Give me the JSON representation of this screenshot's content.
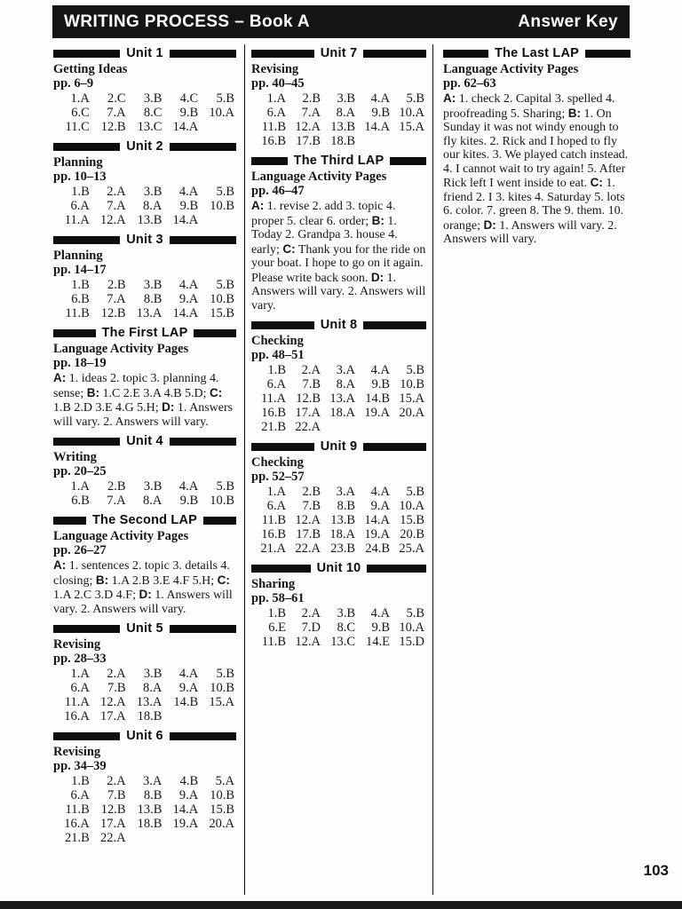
{
  "header": {
    "title": "WRITING PROCESS – Book A",
    "right_label": "Answer Key"
  },
  "page_number": "103",
  "colors": {
    "bar": "#171514",
    "heading_bar": "#0d0d0d",
    "text": "#161616"
  },
  "columns": [
    {
      "sections": [
        {
          "heading": "Unit 1",
          "subtitle": "Getting Ideas",
          "pages": "pp. 6–9",
          "answers": [
            "1.A",
            "2.C",
            "3.B",
            "4.C",
            "5.B",
            "6.C",
            "7.A",
            "8.C",
            "9.B",
            "10.A",
            "11.C",
            "12.B",
            "13.C",
            "14.A"
          ]
        },
        {
          "heading": "Unit 2",
          "subtitle": "Planning",
          "pages": "pp. 10–13",
          "answers": [
            "1.B",
            "2.A",
            "3.B",
            "4.A",
            "5.B",
            "6.A",
            "7.A",
            "8.A",
            "9.B",
            "10.B",
            "11.A",
            "12.A",
            "13.B",
            "14.A"
          ]
        },
        {
          "heading": "Unit 3",
          "subtitle": "Planning",
          "pages": "pp. 14–17",
          "answers": [
            "1.B",
            "2.B",
            "3.B",
            "4.A",
            "5.B",
            "6.B",
            "7.A",
            "8.B",
            "9.A",
            "10.B",
            "11.B",
            "12.B",
            "13.A",
            "14.A",
            "15.B"
          ]
        },
        {
          "heading": "The First LAP",
          "subtitle": "Language Activity Pages",
          "pages": "pp. 18–19",
          "prose": [
            [
              "b",
              "A:"
            ],
            [
              "t",
              " 1. ideas  2. topic  3. planning  4. sense; "
            ],
            [
              "b",
              "B:"
            ],
            [
              "t",
              " 1.C  2.E  3.A  4.B  5.D; "
            ],
            [
              "b",
              "C:"
            ],
            [
              "t",
              " 1.B  2.D  3.E  4.G  5.H; "
            ],
            [
              "b",
              "D:"
            ],
            [
              "t",
              " 1. Answers will vary. 2. Answers will vary."
            ]
          ]
        },
        {
          "heading": "Unit 4",
          "subtitle": "Writing",
          "pages": "pp. 20–25",
          "answers": [
            "1.A",
            "2.B",
            "3.B",
            "4.A",
            "5.B",
            "6.B",
            "7.A",
            "8.A",
            "9.B",
            "10.B"
          ]
        },
        {
          "heading": "The Second LAP",
          "subtitle": "Language Activity Pages",
          "pages": "pp. 26–27",
          "prose": [
            [
              "b",
              "A:"
            ],
            [
              "t",
              " 1. sentences  2. topic  3. details  4. closing; "
            ],
            [
              "b",
              "B:"
            ],
            [
              "t",
              " 1.A  2.B  3.E  4.F  5.H; "
            ],
            [
              "b",
              "C:"
            ],
            [
              "t",
              " 1.A  2.C  3.D  4.F; "
            ],
            [
              "b",
              "D:"
            ],
            [
              "t",
              " 1. Answers will vary. 2. Answers will vary."
            ]
          ]
        },
        {
          "heading": "Unit 5",
          "subtitle": "Revising",
          "pages": "pp. 28–33",
          "answers": [
            "1.A",
            "2.A",
            "3.B",
            "4.A",
            "5.B",
            "6.A",
            "7.B",
            "8.A",
            "9.A",
            "10.B",
            "11.A",
            "12.A",
            "13.A",
            "14.B",
            "15.A",
            "16.A",
            "17.A",
            "18.B"
          ]
        },
        {
          "heading": "Unit 6",
          "subtitle": "Revising",
          "pages": "pp. 34–39",
          "answers": [
            "1.B",
            "2.A",
            "3.A",
            "4.B",
            "5.A",
            "6.A",
            "7.B",
            "8.B",
            "9.A",
            "10.B",
            "11.B",
            "12.B",
            "13.B",
            "14.A",
            "15.B",
            "16.A",
            "17.A",
            "18.B",
            "19.A",
            "20.A",
            "21.B",
            "22.A"
          ]
        }
      ]
    },
    {
      "sections": [
        {
          "heading": "Unit 7",
          "subtitle": "Revising",
          "pages": "pp. 40–45",
          "answers": [
            "1.A",
            "2.B",
            "3.B",
            "4.A",
            "5.B",
            "6.A",
            "7.A",
            "8.A",
            "9.B",
            "10.A",
            "11.B",
            "12.A",
            "13.B",
            "14.A",
            "15.A",
            "16.B",
            "17.B",
            "18.B"
          ]
        },
        {
          "heading": "The Third LAP",
          "subtitle": "Language Activity Pages",
          "pages": "pp. 46–47",
          "prose": [
            [
              "b",
              "A:"
            ],
            [
              "t",
              " 1. revise  2. add  3. topic  4. proper  5. clear  6. order; "
            ],
            [
              "b",
              "B:"
            ],
            [
              "t",
              " 1. Today  2. Grandpa  3. house  4. early; "
            ],
            [
              "b",
              "C:"
            ],
            [
              "t",
              " Thank you for the ride on your boat. I hope to go on it again. Please write back soon. "
            ],
            [
              "b",
              "D:"
            ],
            [
              "t",
              " 1. Answers will vary.  2. Answers will vary."
            ]
          ]
        },
        {
          "heading": "Unit 8",
          "subtitle": "Checking",
          "pages": "pp. 48–51",
          "answers": [
            "1.B",
            "2.A",
            "3.A",
            "4.A",
            "5.B",
            "6.A",
            "7.B",
            "8.A",
            "9.B",
            "10.B",
            "11.A",
            "12.B",
            "13.A",
            "14.B",
            "15.A",
            "16.B",
            "17.A",
            "18.A",
            "19.A",
            "20.A",
            "21.B",
            "22.A"
          ]
        },
        {
          "heading": "Unit 9",
          "subtitle": "Checking",
          "pages": "pp. 52–57",
          "answers": [
            "1.A",
            "2.B",
            "3.A",
            "4.A",
            "5.B",
            "6.A",
            "7.B",
            "8.B",
            "9.A",
            "10.A",
            "11.B",
            "12.A",
            "13.B",
            "14.A",
            "15.B",
            "16.B",
            "17.B",
            "18.A",
            "19.A",
            "20.B",
            "21.A",
            "22.A",
            "23.B",
            "24.B",
            "25.A"
          ]
        },
        {
          "heading": "Unit 10",
          "subtitle": "Sharing",
          "pages": "pp. 58–61",
          "answers": [
            "1.B",
            "2.A",
            "3.B",
            "4.A",
            "5.B",
            "6.E",
            "7.D",
            "8.C",
            "9.B",
            "10.A",
            "11.B",
            "12.A",
            "13.C",
            "14.E",
            "15.D"
          ]
        }
      ]
    },
    {
      "sections": [
        {
          "heading": "The Last LAP",
          "subtitle": "Language Activity Pages",
          "pages": "pp. 62–63",
          "prose": [
            [
              "b",
              "A:"
            ],
            [
              "t",
              " 1. check  2. Capital  3. spelled  4. proofreading  5. Sharing; "
            ],
            [
              "b",
              "B:"
            ],
            [
              "t",
              " 1. On Sunday it was not windy enough to fly kites.  2. Rick and I hoped to fly our kites.  3. We played catch instead.  4. I cannot wait to try again!  5. After Rick left I went inside to eat. "
            ],
            [
              "b",
              "C:"
            ],
            [
              "t",
              " 1. friend  2. I  3. kites  4. Saturday  5. lots  6. color.  7. green  8. The  9. them.  10. orange; "
            ],
            [
              "b",
              "D:"
            ],
            [
              "t",
              " 1. Answers will vary. 2. Answers will vary."
            ]
          ]
        }
      ]
    }
  ]
}
